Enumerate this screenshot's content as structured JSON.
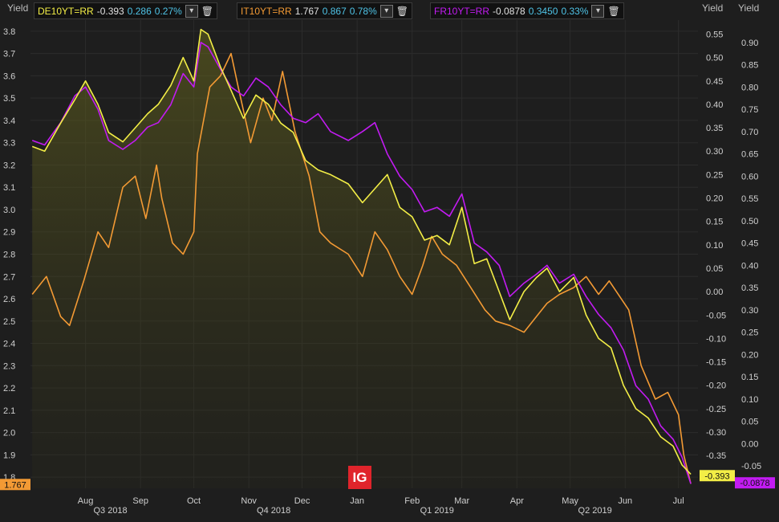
{
  "legend": [
    {
      "ticker": "DE10YT=RR",
      "last": "-0.393",
      "change": "0.286",
      "pct": "0.27%",
      "color": "#f3ee46"
    },
    {
      "ticker": "IT10YT=RR",
      "last": "1.767",
      "change": "0.867",
      "pct": "0.78%",
      "color": "#f39a34"
    },
    {
      "ticker": "FR10YT=RR",
      "last": "-0.0878",
      "change": "0.3450",
      "pct": "0.33%",
      "color": "#c21bf2"
    }
  ],
  "change_color": "#4fc3e6",
  "brand": "IG",
  "axis_titles": {
    "left": "Yield",
    "middle": "Yield",
    "right": "Yield"
  },
  "chart_data": {
    "type": "line",
    "title": "",
    "grid": true,
    "x_range": [
      "2018-07-01",
      "2019-07-12"
    ],
    "x_ticks": [
      "Aug",
      "Sep",
      "Oct",
      "Nov",
      "Dec",
      "Jan",
      "Feb",
      "Mar",
      "Apr",
      "May",
      "Jun",
      "Jul"
    ],
    "x_quarter_labels": [
      "Q3 2018",
      "Q4 2018",
      "Q1 2019",
      "Q2 2019"
    ],
    "axes": {
      "left": {
        "label": "Yield",
        "min": 1.75,
        "max": 3.85,
        "ticks": [
          1.8,
          1.9,
          2.0,
          2.1,
          2.2,
          2.3,
          2.4,
          2.5,
          2.6,
          2.7,
          2.8,
          2.9,
          3.0,
          3.1,
          3.2,
          3.3,
          3.4,
          3.5,
          3.6,
          3.7,
          3.8
        ]
      },
      "middle": {
        "label": "Yield",
        "min": -0.42,
        "max": 0.58,
        "ticks": [
          -0.35,
          -0.3,
          -0.25,
          -0.2,
          -0.15,
          -0.1,
          -0.05,
          0.0,
          0.05,
          0.1,
          0.15,
          0.2,
          0.25,
          0.3,
          0.35,
          0.4,
          0.45,
          0.5,
          0.55
        ]
      },
      "right": {
        "label": "Yield",
        "min": -0.1,
        "max": 0.95,
        "ticks": [
          -0.05,
          0.0,
          0.05,
          0.1,
          0.15,
          0.2,
          0.25,
          0.3,
          0.35,
          0.4,
          0.45,
          0.5,
          0.55,
          0.6,
          0.65,
          0.7,
          0.75,
          0.8,
          0.85,
          0.9
        ]
      }
    },
    "last_value_tags": [
      {
        "text": "1.767",
        "axis": "left",
        "value": 1.767,
        "color": "#f39a34"
      },
      {
        "text": "-0.393",
        "axis": "middle",
        "value": -0.393,
        "color": "#f3ee46"
      },
      {
        "text": "-0.0878",
        "axis": "right",
        "value": -0.0878,
        "color": "#c21bf2"
      }
    ],
    "series": [
      {
        "name": "IT10YT=RR",
        "axis": "left",
        "color": "#f39a34",
        "points": [
          [
            "2018-07-02",
            2.62
          ],
          [
            "2018-07-10",
            2.7
          ],
          [
            "2018-07-18",
            2.52
          ],
          [
            "2018-07-23",
            2.48
          ],
          [
            "2018-07-31",
            2.68
          ],
          [
            "2018-08-08",
            2.9
          ],
          [
            "2018-08-14",
            2.83
          ],
          [
            "2018-08-22",
            3.1
          ],
          [
            "2018-08-29",
            3.15
          ],
          [
            "2018-09-04",
            2.96
          ],
          [
            "2018-09-10",
            3.2
          ],
          [
            "2018-09-13",
            3.05
          ],
          [
            "2018-09-19",
            2.85
          ],
          [
            "2018-09-25",
            2.8
          ],
          [
            "2018-10-01",
            2.9
          ],
          [
            "2018-10-03",
            3.25
          ],
          [
            "2018-10-10",
            3.55
          ],
          [
            "2018-10-16",
            3.6
          ],
          [
            "2018-10-22",
            3.7
          ],
          [
            "2018-10-26",
            3.55
          ],
          [
            "2018-11-02",
            3.3
          ],
          [
            "2018-11-09",
            3.5
          ],
          [
            "2018-11-14",
            3.4
          ],
          [
            "2018-11-20",
            3.62
          ],
          [
            "2018-11-27",
            3.35
          ],
          [
            "2018-12-05",
            3.15
          ],
          [
            "2018-12-11",
            2.9
          ],
          [
            "2018-12-17",
            2.85
          ],
          [
            "2018-12-27",
            2.8
          ],
          [
            "2019-01-04",
            2.7
          ],
          [
            "2019-01-11",
            2.9
          ],
          [
            "2019-01-18",
            2.82
          ],
          [
            "2019-01-25",
            2.7
          ],
          [
            "2019-02-01",
            2.62
          ],
          [
            "2019-02-07",
            2.75
          ],
          [
            "2019-02-12",
            2.88
          ],
          [
            "2019-02-18",
            2.8
          ],
          [
            "2019-02-26",
            2.75
          ],
          [
            "2019-03-06",
            2.65
          ],
          [
            "2019-03-14",
            2.55
          ],
          [
            "2019-03-20",
            2.5
          ],
          [
            "2019-03-28",
            2.48
          ],
          [
            "2019-04-05",
            2.45
          ],
          [
            "2019-04-12",
            2.52
          ],
          [
            "2019-04-18",
            2.58
          ],
          [
            "2019-04-25",
            2.62
          ],
          [
            "2019-05-03",
            2.65
          ],
          [
            "2019-05-10",
            2.7
          ],
          [
            "2019-05-17",
            2.62
          ],
          [
            "2019-05-23",
            2.68
          ],
          [
            "2019-06-03",
            2.55
          ],
          [
            "2019-06-10",
            2.3
          ],
          [
            "2019-06-18",
            2.15
          ],
          [
            "2019-06-25",
            2.18
          ],
          [
            "2019-07-01",
            2.08
          ],
          [
            "2019-07-04",
            1.9
          ],
          [
            "2019-07-08",
            1.77
          ]
        ]
      },
      {
        "name": "DE10YT=RR",
        "axis": "middle",
        "color": "#f3ee46",
        "points": [
          [
            "2018-07-02",
            0.31
          ],
          [
            "2018-07-09",
            0.3
          ],
          [
            "2018-07-18",
            0.36
          ],
          [
            "2018-07-26",
            0.41
          ],
          [
            "2018-08-01",
            0.45
          ],
          [
            "2018-08-08",
            0.4
          ],
          [
            "2018-08-14",
            0.34
          ],
          [
            "2018-08-22",
            0.32
          ],
          [
            "2018-08-29",
            0.35
          ],
          [
            "2018-09-05",
            0.38
          ],
          [
            "2018-09-11",
            0.4
          ],
          [
            "2018-09-18",
            0.44
          ],
          [
            "2018-09-25",
            0.5
          ],
          [
            "2018-10-01",
            0.45
          ],
          [
            "2018-10-05",
            0.56
          ],
          [
            "2018-10-09",
            0.55
          ],
          [
            "2018-10-16",
            0.48
          ],
          [
            "2018-10-22",
            0.43
          ],
          [
            "2018-10-29",
            0.37
          ],
          [
            "2018-11-05",
            0.42
          ],
          [
            "2018-11-12",
            0.4
          ],
          [
            "2018-11-19",
            0.36
          ],
          [
            "2018-11-26",
            0.34
          ],
          [
            "2018-12-03",
            0.28
          ],
          [
            "2018-12-10",
            0.26
          ],
          [
            "2018-12-17",
            0.25
          ],
          [
            "2018-12-27",
            0.23
          ],
          [
            "2019-01-04",
            0.19
          ],
          [
            "2019-01-11",
            0.22
          ],
          [
            "2019-01-18",
            0.25
          ],
          [
            "2019-01-25",
            0.18
          ],
          [
            "2019-02-01",
            0.16
          ],
          [
            "2019-02-08",
            0.11
          ],
          [
            "2019-02-15",
            0.12
          ],
          [
            "2019-02-22",
            0.1
          ],
          [
            "2019-03-01",
            0.18
          ],
          [
            "2019-03-08",
            0.06
          ],
          [
            "2019-03-15",
            0.07
          ],
          [
            "2019-03-22",
            0.0
          ],
          [
            "2019-03-28",
            -0.06
          ],
          [
            "2019-04-05",
            0.0
          ],
          [
            "2019-04-12",
            0.03
          ],
          [
            "2019-04-18",
            0.05
          ],
          [
            "2019-04-25",
            0.0
          ],
          [
            "2019-05-03",
            0.03
          ],
          [
            "2019-05-10",
            -0.05
          ],
          [
            "2019-05-17",
            -0.1
          ],
          [
            "2019-05-24",
            -0.12
          ],
          [
            "2019-05-31",
            -0.2
          ],
          [
            "2019-06-07",
            -0.25
          ],
          [
            "2019-06-14",
            -0.27
          ],
          [
            "2019-06-21",
            -0.31
          ],
          [
            "2019-06-28",
            -0.33
          ],
          [
            "2019-07-03",
            -0.37
          ],
          [
            "2019-07-08",
            -0.39
          ]
        ]
      },
      {
        "name": "FR10YT=RR",
        "axis": "right",
        "color": "#c21bf2",
        "points": [
          [
            "2018-07-02",
            0.68
          ],
          [
            "2018-07-09",
            0.67
          ],
          [
            "2018-07-18",
            0.72
          ],
          [
            "2018-07-26",
            0.78
          ],
          [
            "2018-08-01",
            0.8
          ],
          [
            "2018-08-08",
            0.75
          ],
          [
            "2018-08-14",
            0.68
          ],
          [
            "2018-08-22",
            0.66
          ],
          [
            "2018-08-29",
            0.68
          ],
          [
            "2018-09-05",
            0.71
          ],
          [
            "2018-09-11",
            0.72
          ],
          [
            "2018-09-18",
            0.76
          ],
          [
            "2018-09-25",
            0.83
          ],
          [
            "2018-10-01",
            0.8
          ],
          [
            "2018-10-05",
            0.9
          ],
          [
            "2018-10-09",
            0.89
          ],
          [
            "2018-10-16",
            0.84
          ],
          [
            "2018-10-22",
            0.8
          ],
          [
            "2018-10-29",
            0.78
          ],
          [
            "2018-11-05",
            0.82
          ],
          [
            "2018-11-12",
            0.8
          ],
          [
            "2018-11-19",
            0.76
          ],
          [
            "2018-11-26",
            0.73
          ],
          [
            "2018-12-03",
            0.72
          ],
          [
            "2018-12-10",
            0.74
          ],
          [
            "2018-12-17",
            0.7
          ],
          [
            "2018-12-27",
            0.68
          ],
          [
            "2019-01-04",
            0.7
          ],
          [
            "2019-01-11",
            0.72
          ],
          [
            "2019-01-18",
            0.65
          ],
          [
            "2019-01-25",
            0.6
          ],
          [
            "2019-02-01",
            0.57
          ],
          [
            "2019-02-08",
            0.52
          ],
          [
            "2019-02-15",
            0.53
          ],
          [
            "2019-02-22",
            0.51
          ],
          [
            "2019-03-01",
            0.56
          ],
          [
            "2019-03-08",
            0.45
          ],
          [
            "2019-03-15",
            0.43
          ],
          [
            "2019-03-22",
            0.4
          ],
          [
            "2019-03-28",
            0.33
          ],
          [
            "2019-04-05",
            0.36
          ],
          [
            "2019-04-12",
            0.38
          ],
          [
            "2019-04-18",
            0.4
          ],
          [
            "2019-04-25",
            0.36
          ],
          [
            "2019-05-03",
            0.38
          ],
          [
            "2019-05-10",
            0.33
          ],
          [
            "2019-05-17",
            0.29
          ],
          [
            "2019-05-24",
            0.26
          ],
          [
            "2019-05-31",
            0.21
          ],
          [
            "2019-06-07",
            0.13
          ],
          [
            "2019-06-14",
            0.1
          ],
          [
            "2019-06-21",
            0.04
          ],
          [
            "2019-06-28",
            0.01
          ],
          [
            "2019-07-03",
            -0.03
          ],
          [
            "2019-07-08",
            -0.09
          ]
        ]
      }
    ]
  }
}
